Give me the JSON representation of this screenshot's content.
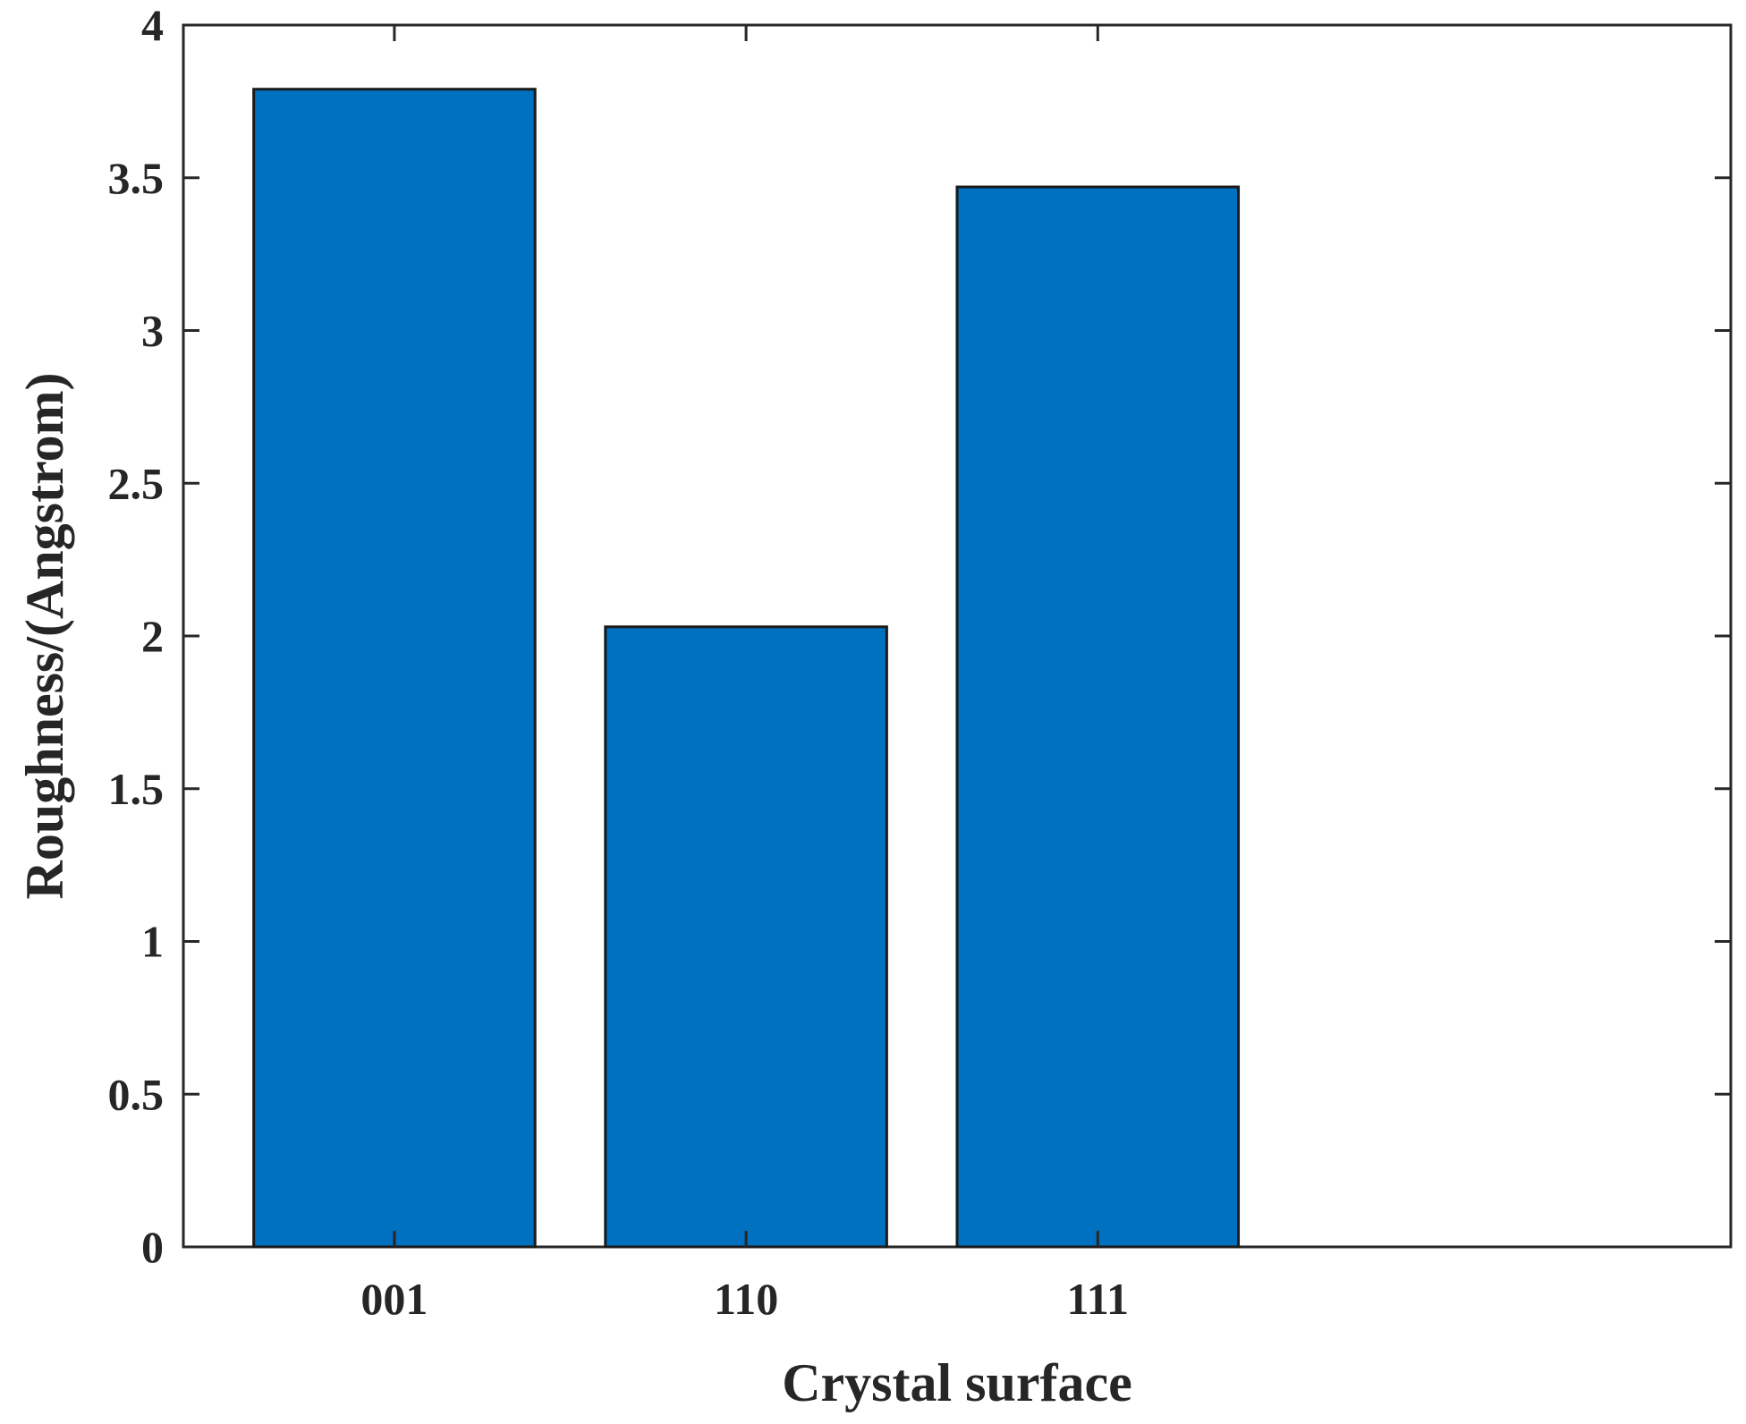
{
  "chart_data": {
    "type": "bar",
    "categories": [
      "001",
      "110",
      "111"
    ],
    "values": [
      3.79,
      2.03,
      3.47
    ],
    "xlabel": "Crystal surface",
    "ylabel": "Roughness/(Angstrom)",
    "ylim": [
      0,
      4
    ],
    "xlim": [
      0.4,
      4.8
    ],
    "yticks": [
      0,
      0.5,
      1,
      1.5,
      2,
      2.5,
      3,
      3.5,
      4
    ],
    "ytick_labels": [
      "0",
      "0.5",
      "1",
      "1.5",
      "2",
      "2.5",
      "3",
      "3.5",
      "4"
    ],
    "bar_color": "#0070C0",
    "grid": false,
    "legend": "none"
  }
}
